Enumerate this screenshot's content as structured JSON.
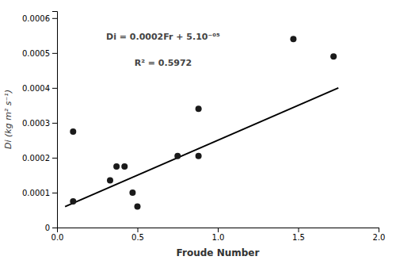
{
  "chart_data": {
    "type": "scatter",
    "x_label": "Froude Number",
    "y_label": "Di (kg m² s⁻¹)",
    "annotations": [
      "Di = 0.0002Fr + 5.10⁻⁰⁵",
      "R² = 0.5972"
    ],
    "series": [
      {
        "type": "scatter",
        "color": "#1a1a1a",
        "x": [
          0.1,
          0.1,
          0.33,
          0.37,
          0.42,
          0.47,
          0.5,
          0.75,
          0.88,
          0.88,
          1.47,
          1.72
        ],
        "values": [
          7.5e-05,
          0.000275,
          0.000135,
          0.000175,
          0.000175,
          0.0001,
          6e-05,
          0.000205,
          0.000205,
          0.00034,
          0.00054,
          0.00049
        ]
      },
      {
        "type": "line",
        "color": "#000000",
        "x": [
          0.05,
          1.75
        ],
        "values": [
          6e-05,
          0.0004
        ]
      }
    ],
    "xlim": [
      0,
      2
    ],
    "ylim": [
      0,
      0.00062
    ],
    "xticks": [
      {
        "value": 0,
        "label": "0.0"
      },
      0.5,
      {
        "value": 1.0,
        "label": "1.0"
      },
      1.5,
      {
        "value": 2.0,
        "label": "2.0"
      }
    ],
    "yticks": [
      0,
      0.0001,
      0.0002,
      0.0003,
      0.0004,
      0.0005,
      0.0006
    ],
    "grid": false
  }
}
